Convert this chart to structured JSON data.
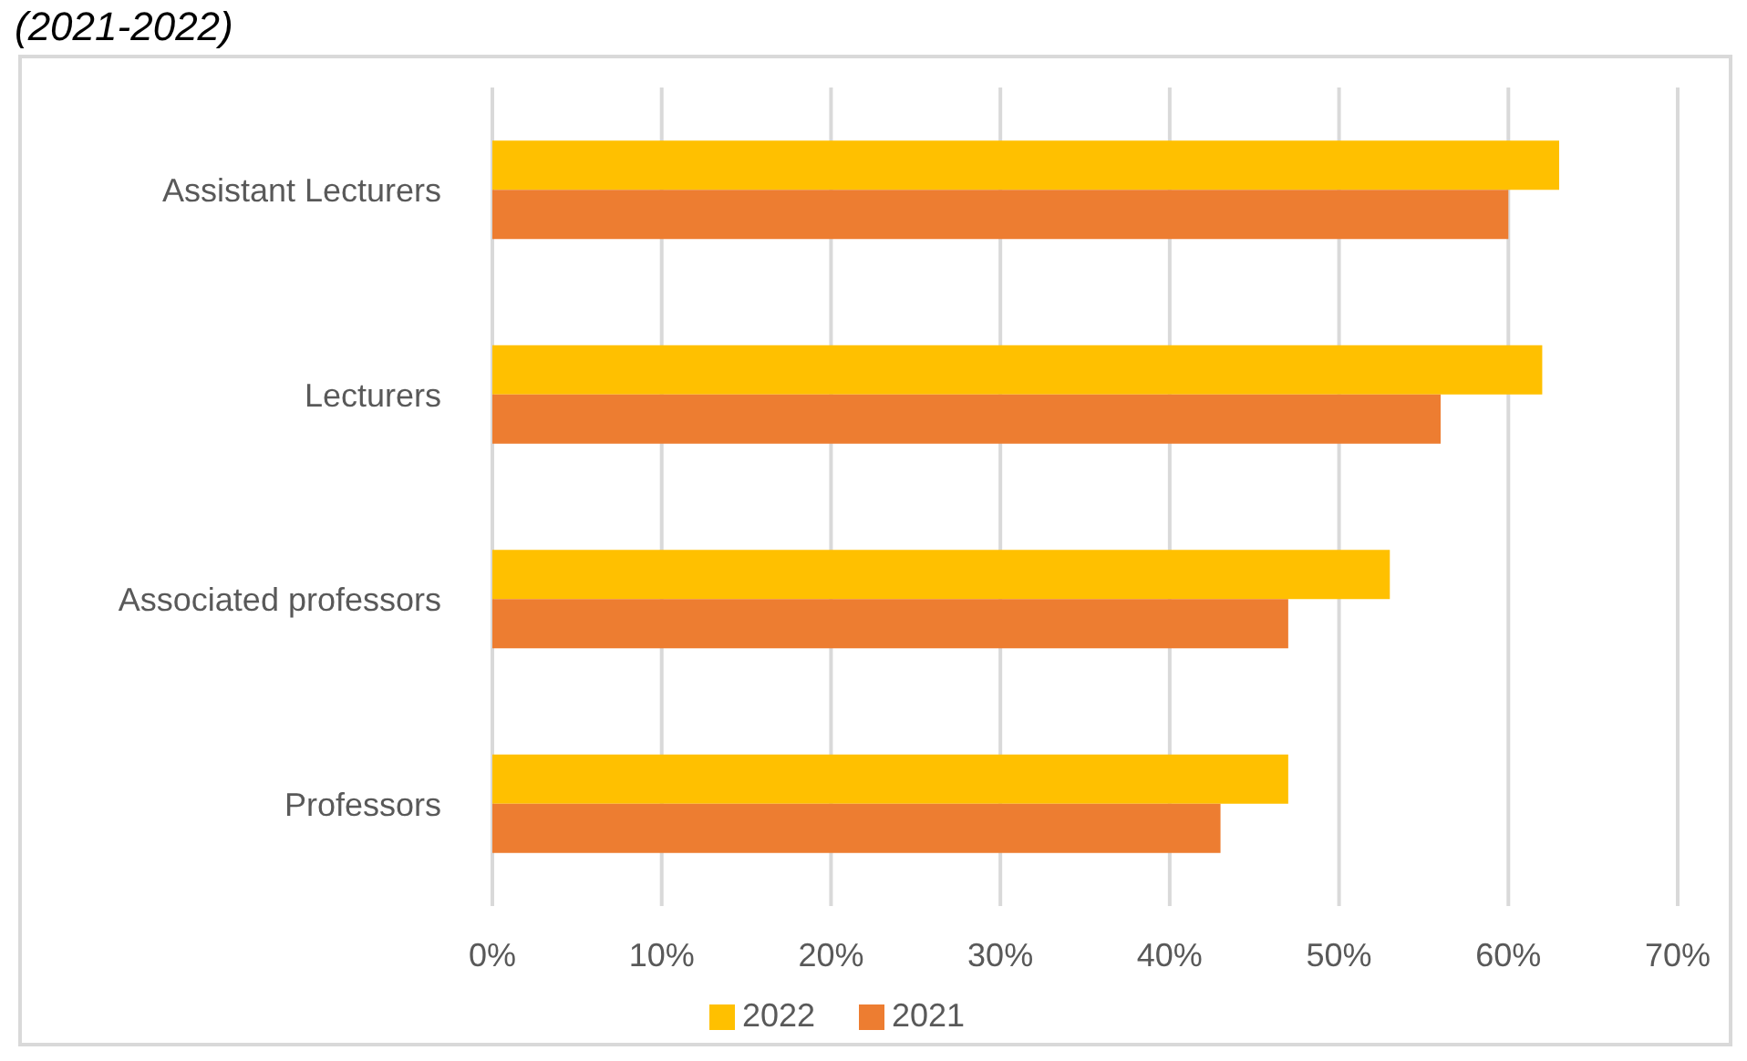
{
  "chart_data": {
    "type": "bar",
    "orientation": "horizontal",
    "title": "(2021-2022)",
    "categories": [
      "Assistant Lecturers",
      "Lecturers",
      "Associated professors",
      "Professors"
    ],
    "series": [
      {
        "name": "2022",
        "color": "#ffc000",
        "values": [
          63,
          62,
          53,
          47
        ]
      },
      {
        "name": "2021",
        "color": "#ed7d31",
        "values": [
          60,
          56,
          47,
          43
        ]
      }
    ],
    "xlim": [
      0,
      70
    ],
    "xticks": [
      {
        "value": 0,
        "label": "0%"
      },
      {
        "value": 10,
        "label": "10%"
      },
      {
        "value": 20,
        "label": "20%"
      },
      {
        "value": 30,
        "label": "30%"
      },
      {
        "value": 40,
        "label": "40%"
      },
      {
        "value": 50,
        "label": "50%"
      },
      {
        "value": 60,
        "label": "60%"
      },
      {
        "value": 70,
        "label": "70%"
      }
    ],
    "grid": "x",
    "legend": "bottom"
  }
}
